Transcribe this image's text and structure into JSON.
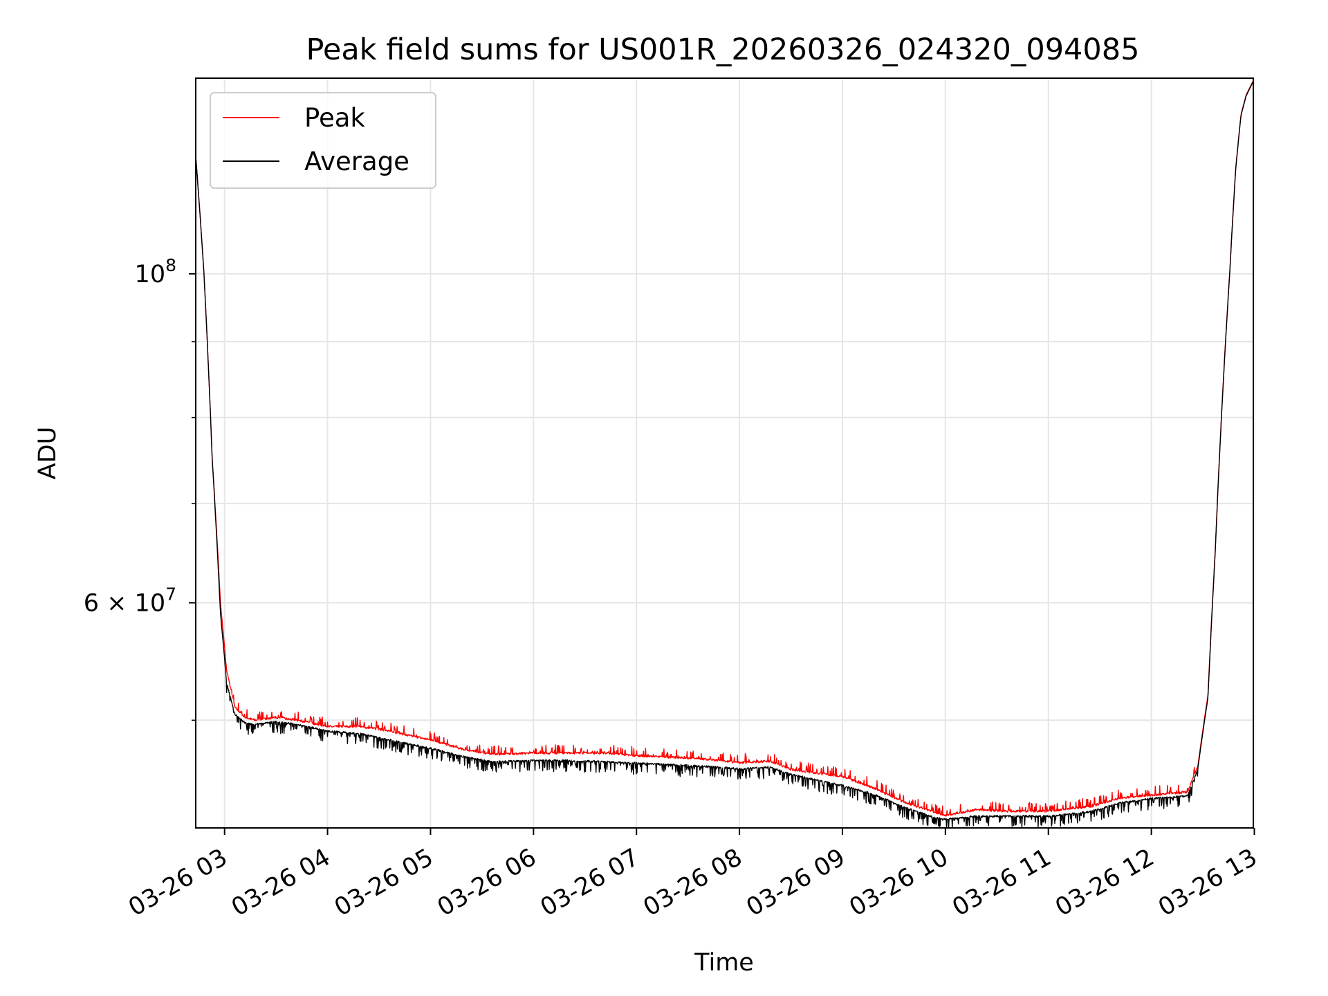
{
  "chart_data": {
    "type": "line",
    "title": "Peak field sums for US001R_20260326_024320_094085",
    "xlabel": "Time",
    "ylabel": "ADU",
    "yscale": "log",
    "x_unit": "hours since 03-26 00:00",
    "xlim": [
      2.72,
      12.99
    ],
    "ylim": [
      42300000,
      135500000
    ],
    "x_ticks": [
      {
        "value": 3,
        "label": "03-26 03"
      },
      {
        "value": 4,
        "label": "03-26 04"
      },
      {
        "value": 5,
        "label": "03-26 05"
      },
      {
        "value": 6,
        "label": "03-26 06"
      },
      {
        "value": 7,
        "label": "03-26 07"
      },
      {
        "value": 8,
        "label": "03-26 08"
      },
      {
        "value": 9,
        "label": "03-26 09"
      },
      {
        "value": 10,
        "label": "03-26 10"
      },
      {
        "value": 11,
        "label": "03-26 11"
      },
      {
        "value": 12,
        "label": "03-26 12"
      },
      {
        "value": 13,
        "label": "03-26 13"
      }
    ],
    "y_major_ticks": [
      {
        "value": 100000000,
        "base": "10",
        "exp": "8"
      },
      {
        "value": 60000000,
        "base": "6 × 10",
        "exp": "7"
      }
    ],
    "y_minor_ticks": [
      50000000,
      70000000,
      80000000,
      90000000
    ],
    "grid": true,
    "legend": {
      "position": "top-left"
    },
    "series": [
      {
        "name": "Peak",
        "color": "#ff0000",
        "x": [
          2.72,
          2.8,
          2.88,
          2.96,
          3.02,
          3.1,
          3.2,
          3.3,
          3.5,
          3.7,
          4.0,
          4.3,
          4.5,
          4.8,
          5.0,
          5.3,
          5.6,
          6.0,
          6.3,
          6.7,
          7.0,
          7.3,
          7.6,
          8.0,
          8.3,
          8.5,
          8.8,
          9.0,
          9.3,
          9.6,
          9.9,
          10.0,
          10.3,
          10.6,
          11.0,
          11.4,
          11.7,
          12.0,
          12.2,
          12.35,
          12.45,
          12.55,
          12.62,
          12.7,
          12.76,
          12.82,
          12.87,
          12.92,
          12.99
        ],
        "y": [
          120000000,
          100000000,
          75000000,
          60000000,
          54000000,
          51000000,
          50200000,
          50000000,
          50200000,
          50000000,
          49500000,
          49500000,
          49300000,
          48800000,
          48500000,
          47800000,
          47400000,
          47500000,
          47500000,
          47500000,
          47300000,
          47200000,
          47100000,
          46800000,
          46900000,
          46300000,
          46000000,
          45800000,
          45000000,
          44000000,
          43300000,
          43100000,
          43500000,
          43400000,
          43400000,
          43700000,
          44300000,
          44500000,
          44600000,
          44700000,
          46500000,
          52000000,
          65000000,
          85000000,
          100000000,
          118000000,
          128000000,
          132000000,
          135000000
        ]
      },
      {
        "name": "Average",
        "color": "#000000",
        "x": [
          2.72,
          2.8,
          2.88,
          2.96,
          3.02,
          3.1,
          3.2,
          3.3,
          3.5,
          3.7,
          4.0,
          4.3,
          4.5,
          4.8,
          5.0,
          5.3,
          5.6,
          6.0,
          6.3,
          6.7,
          7.0,
          7.3,
          7.6,
          8.0,
          8.3,
          8.5,
          8.8,
          9.0,
          9.3,
          9.6,
          9.9,
          10.0,
          10.3,
          10.6,
          11.0,
          11.4,
          11.7,
          12.0,
          12.2,
          12.35,
          12.45,
          12.55,
          12.62,
          12.7,
          12.76,
          12.82,
          12.87,
          12.92,
          12.99
        ],
        "y": [
          120000000,
          100000000,
          75000000,
          59000000,
          53000000,
          50500000,
          49800000,
          49700000,
          49900000,
          49700000,
          49200000,
          49000000,
          48700000,
          48200000,
          47900000,
          47300000,
          46900000,
          47000000,
          47000000,
          46900000,
          46800000,
          46700000,
          46600000,
          46400000,
          46500000,
          46000000,
          45500000,
          45200000,
          44600000,
          43700000,
          43000000,
          42900000,
          43100000,
          43100000,
          43100000,
          43400000,
          44000000,
          44300000,
          44400000,
          44500000,
          46300000,
          51800000,
          64800000,
          84800000,
          99800000,
          117800000,
          127800000,
          131800000,
          134800000
        ]
      }
    ]
  }
}
